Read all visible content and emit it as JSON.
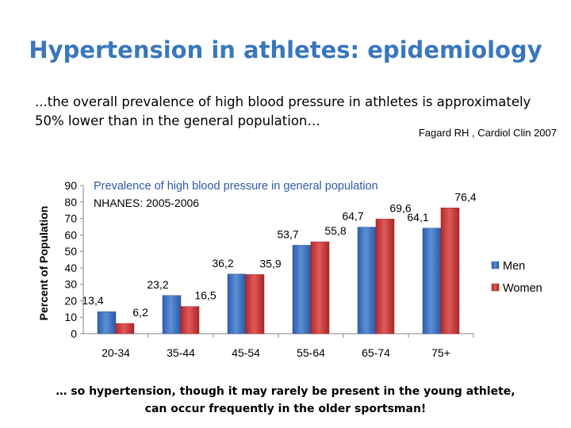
{
  "slide": {
    "title": "Hypertension in athletes: epidemiology",
    "lead_line1": "...the overall prevalence of high blood pressure in athletes is approximately",
    "lead_line2": "50% lower than in the general population…",
    "citation": "Fagard RH , Cardiol Clin 2007",
    "conclusion_line1": "… so hypertension, though it may rarely be present in the young athlete,",
    "conclusion_line2": "can occur frequently in the older sportsman!"
  },
  "chart_data": {
    "type": "bar",
    "title": "Prevalence of high blood pressure in general population",
    "subtitle": "NHANES: 2005-2006",
    "ylabel": "Percent of Population",
    "xlabel": "",
    "categories": [
      "20-34",
      "35-44",
      "45-54",
      "55-64",
      "65-74",
      "75+"
    ],
    "series": [
      {
        "name": "Men",
        "values": [
          13.4,
          23.2,
          36.2,
          53.7,
          64.7,
          64.1
        ],
        "labels": [
          "13,4",
          "23,2",
          "36,2",
          "53,7",
          "64,7",
          "64,1"
        ],
        "color": "#3a6fc0"
      },
      {
        "name": "Women",
        "values": [
          6.2,
          16.5,
          35.9,
          55.8,
          69.6,
          76.4
        ],
        "labels": [
          "6,2",
          "16,5",
          "35,9",
          "55,8",
          "69,6",
          "76,4"
        ],
        "color": "#cc3333"
      }
    ],
    "ylim": [
      0,
      90
    ],
    "yticks": [
      "0",
      "10",
      "20",
      "30",
      "40",
      "50",
      "60",
      "70",
      "80",
      "90"
    ],
    "grid": false,
    "legend_position": "right"
  }
}
